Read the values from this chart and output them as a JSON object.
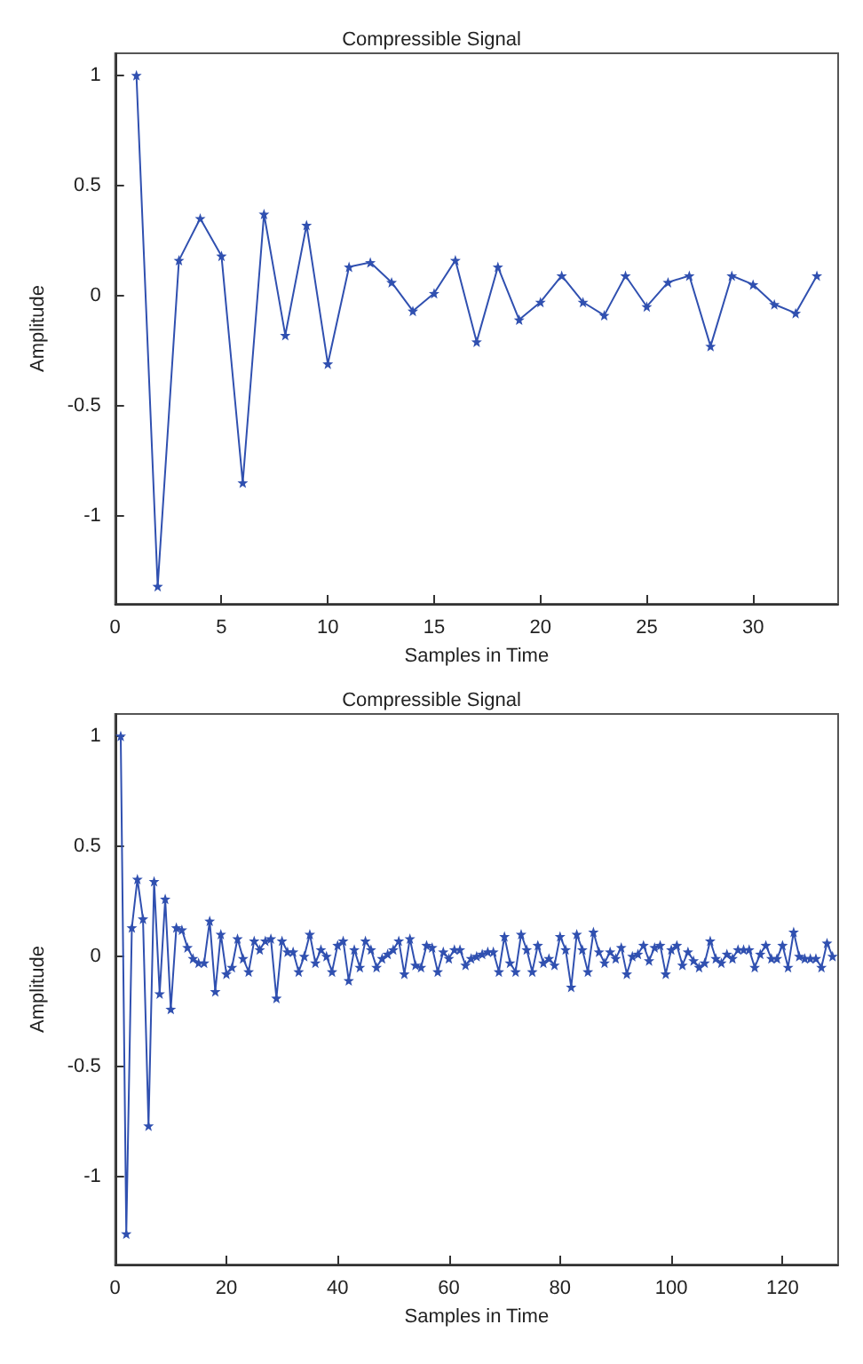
{
  "chart_data": [
    {
      "type": "line",
      "title": "Compressible Signal",
      "xlabel": "Samples in Time",
      "ylabel": "Amplitude",
      "x": [
        1,
        2,
        3,
        4,
        5,
        6,
        7,
        8,
        9,
        10,
        11,
        12,
        13,
        14,
        15,
        16,
        17,
        18,
        19,
        20,
        21,
        22,
        23,
        24,
        25,
        26,
        27,
        28,
        29,
        30,
        31,
        32,
        33
      ],
      "series": [
        {
          "color": "#3050b0",
          "values": [
            1,
            -1.32,
            0.16,
            0.35,
            0.18,
            -0.85,
            0.37,
            -0.18,
            0.32,
            -0.31,
            0.13,
            0.15,
            0.06,
            -0.07,
            0.01,
            0.16,
            -0.21,
            0.13,
            -0.11,
            -0.03,
            0.09,
            -0.03,
            -0.09,
            0.09,
            -0.05,
            0.06,
            0.09,
            -0.23,
            0.09,
            0.05,
            -0.04,
            -0.08,
            0.09
          ]
        }
      ],
      "xlim": [
        0,
        34
      ],
      "xticks": [
        0,
        5,
        10,
        15,
        20,
        25,
        30
      ],
      "ylim": [
        -1.4,
        1.1
      ],
      "yticks": [
        -1,
        -0.5,
        0,
        0.5,
        1
      ],
      "grid": false,
      "marker": "star",
      "line_style": "solid"
    },
    {
      "type": "line",
      "title": "Compressible Signal",
      "xlabel": "Samples in Time",
      "ylabel": "Amplitude",
      "x": [
        1,
        2,
        3,
        4,
        5,
        6,
        7,
        8,
        9,
        10,
        11,
        12,
        13,
        14,
        15,
        16,
        17,
        18,
        19,
        20,
        21,
        22,
        23,
        24,
        25,
        26,
        27,
        28,
        29,
        30,
        31,
        32,
        33,
        34,
        35,
        36,
        37,
        38,
        39,
        40,
        41,
        42,
        43,
        44,
        45,
        46,
        47,
        48,
        49,
        50,
        51,
        52,
        53,
        54,
        55,
        56,
        57,
        58,
        59,
        60,
        61,
        62,
        63,
        64,
        65,
        66,
        67,
        68,
        69,
        70,
        71,
        72,
        73,
        74,
        75,
        76,
        77,
        78,
        79,
        80,
        81,
        82,
        83,
        84,
        85,
        86,
        87,
        88,
        89,
        90,
        91,
        92,
        93,
        94,
        95,
        96,
        97,
        98,
        99,
        100,
        101,
        102,
        103,
        104,
        105,
        106,
        107,
        108,
        109,
        110,
        111,
        112,
        113,
        114,
        115,
        116,
        117,
        118,
        119,
        120,
        121,
        122,
        123,
        124,
        125,
        126,
        127,
        128,
        129
      ],
      "series": [
        {
          "color": "#3050b0",
          "values": [
            1,
            -1.26,
            0.13,
            0.35,
            0.17,
            -0.77,
            0.34,
            -0.17,
            0.26,
            -0.24,
            0.13,
            0.12,
            0.04,
            -0.01,
            -0.03,
            -0.03,
            0.16,
            -0.16,
            0.1,
            -0.08,
            -0.05,
            0.08,
            -0.01,
            -0.07,
            0.07,
            0.03,
            0.07,
            0.08,
            -0.19,
            0.07,
            0.02,
            0.02,
            -0.07,
            0,
            0.1,
            -0.03,
            0.03,
            0,
            -0.07,
            0.05,
            0.07,
            -0.11,
            0.03,
            -0.05,
            0.07,
            0.03,
            -0.05,
            -0.01,
            0.01,
            0.03,
            0.07,
            -0.08,
            0.08,
            -0.04,
            -0.05,
            0.05,
            0.04,
            -0.07,
            0.02,
            -0.01,
            0.03,
            0.03,
            -0.04,
            -0.01,
            0,
            0.01,
            0.02,
            0.02,
            -0.07,
            0.09,
            -0.03,
            -0.07,
            0.1,
            0.03,
            -0.07,
            0.05,
            -0.03,
            -0.01,
            -0.04,
            0.09,
            0.03,
            -0.14,
            0.1,
            0.03,
            -0.07,
            0.11,
            0.02,
            -0.03,
            0.02,
            -0.01,
            0.04,
            -0.08,
            0,
            0.01,
            0.05,
            -0.02,
            0.04,
            0.05,
            -0.08,
            0.03,
            0.05,
            -0.04,
            0.02,
            -0.02,
            -0.05,
            -0.03,
            0.07,
            -0.01,
            -0.03,
            0.01,
            -0.01,
            0.03,
            0.03,
            0.03,
            -0.05,
            0.01,
            0.05,
            -0.01,
            -0.01,
            0.05,
            -0.05,
            0.11,
            0,
            -0.01,
            -0.01,
            -0.01,
            -0.05,
            0.06,
            0
          ]
        }
      ],
      "xlim": [
        0,
        130
      ],
      "xticks": [
        0,
        20,
        40,
        60,
        80,
        100,
        120
      ],
      "ylim": [
        -1.4,
        1.1
      ],
      "yticks": [
        -1,
        -0.5,
        0,
        0.5,
        1
      ],
      "grid": false,
      "marker": "star",
      "line_style": "solid"
    }
  ]
}
